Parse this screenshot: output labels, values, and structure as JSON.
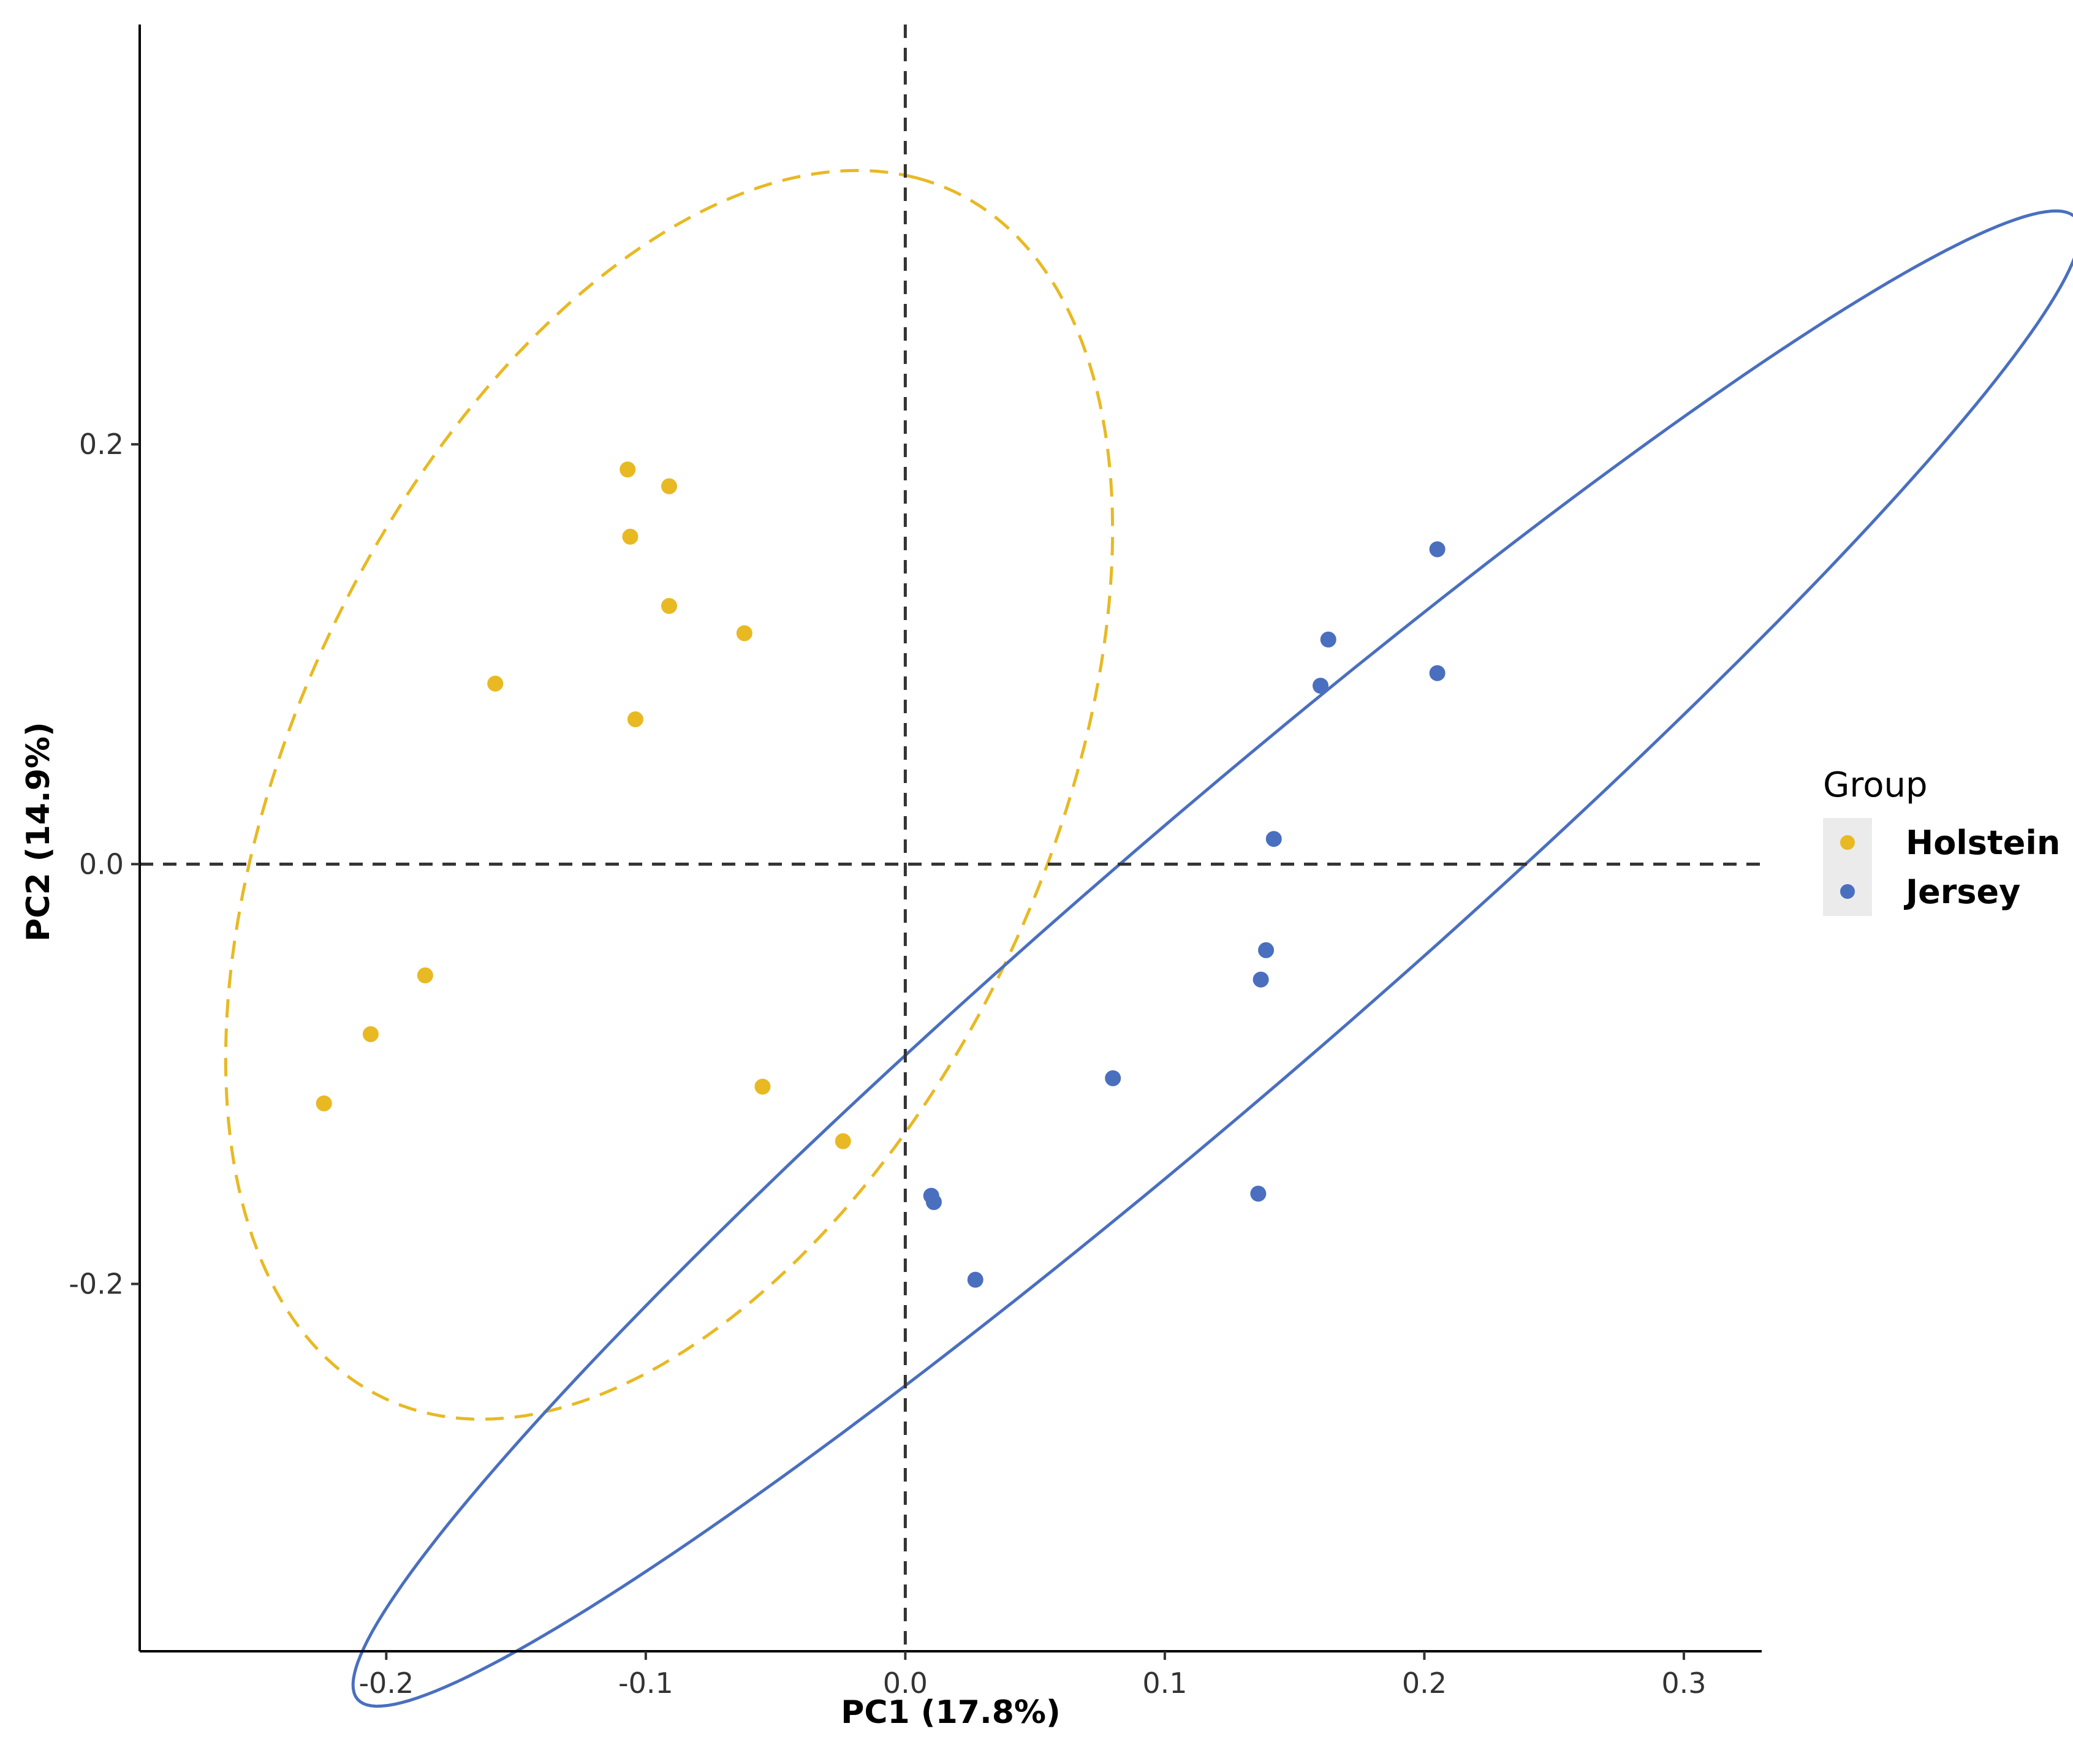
{
  "chart_data": {
    "type": "scatter",
    "title": "",
    "xlabel": "PC1 (17.8%)",
    "ylabel": "PC2 (14.9%)",
    "xlim": [
      -0.295,
      0.33
    ],
    "ylim": [
      -0.375,
      0.4
    ],
    "x_ticks": [
      {
        "value": -0.2,
        "label": "-0.2"
      },
      {
        "value": -0.1,
        "label": "-0.1"
      },
      {
        "value": 0.0,
        "label": "0.0"
      },
      {
        "value": 0.1,
        "label": "0.1"
      },
      {
        "value": 0.2,
        "label": "0.2"
      },
      {
        "value": 0.3,
        "label": "0.3"
      }
    ],
    "y_ticks": [
      {
        "value": 0.2,
        "label": "0.2"
      },
      {
        "value": 0.0,
        "label": "0.0"
      },
      {
        "value": -0.2,
        "label": "-0.2"
      }
    ],
    "reference_lines": {
      "x": 0,
      "y": 0,
      "style": "dashed"
    },
    "grid": false,
    "legend": {
      "title": "Group",
      "position": "right"
    },
    "series": [
      {
        "name": "Holstein",
        "color": "#E8B923",
        "points": [
          [
            -0.107,
            0.188
          ],
          [
            -0.091,
            0.18
          ],
          [
            -0.106,
            0.156
          ],
          [
            -0.091,
            0.123
          ],
          [
            -0.062,
            0.11
          ],
          [
            -0.158,
            0.086
          ],
          [
            -0.104,
            0.069
          ],
          [
            -0.185,
            -0.053
          ],
          [
            -0.206,
            -0.081
          ],
          [
            -0.224,
            -0.114
          ],
          [
            -0.055,
            -0.106
          ],
          [
            -0.024,
            -0.132
          ]
        ],
        "ellipse": {
          "style": "dashed",
          "center": [
            -0.091,
            0.033
          ],
          "semi_axes": [
            0.309,
            0.149
          ],
          "angle_deg": 72
        }
      },
      {
        "name": "Jersey",
        "color": "#4A6FBF",
        "points": [
          [
            0.205,
            0.15
          ],
          [
            0.163,
            0.107
          ],
          [
            0.205,
            0.091
          ],
          [
            0.16,
            0.085
          ],
          [
            0.142,
            0.012
          ],
          [
            0.139,
            -0.041
          ],
          [
            0.137,
            -0.055
          ],
          [
            0.08,
            -0.102
          ],
          [
            0.01,
            -0.158
          ],
          [
            0.011,
            -0.161
          ],
          [
            0.136,
            -0.157
          ],
          [
            0.027,
            -0.198
          ]
        ],
        "ellipse": {
          "style": "solid",
          "center": [
            0.12,
            -0.045
          ],
          "semi_axes": [
            0.484,
            0.058
          ],
          "angle_deg": 47
        }
      }
    ]
  }
}
